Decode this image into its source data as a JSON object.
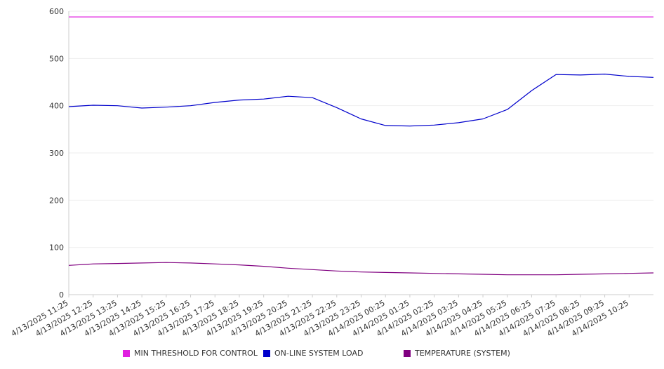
{
  "chart_data": {
    "type": "line",
    "title": "",
    "xlabel": "",
    "ylabel": "",
    "ylim": [
      0,
      600
    ],
    "yticks": [
      0,
      100,
      200,
      300,
      400,
      500,
      600
    ],
    "grid": true,
    "legend_position": "bottom",
    "x_tick_labels": [
      "4/13/2025 11:25",
      "4/13/2025 12:25",
      "4/13/2025 13:25",
      "4/13/2025 14:25",
      "4/13/2025 15:25",
      "4/13/2025 16:25",
      "4/13/2025 17:25",
      "4/13/2025 18:25",
      "4/13/2025 19:25",
      "4/13/2025 20:25",
      "4/13/2025 21:25",
      "4/13/2025 22:25",
      "4/13/2025 23:25",
      "4/14/2025 00:25",
      "4/14/2025 01:25",
      "4/14/2025 02:25",
      "4/14/2025 03:25",
      "4/14/2025 04:25",
      "4/14/2025 05:25",
      "4/14/2025 06:25",
      "4/14/2025 07:25",
      "4/14/2025 08:25",
      "4/14/2025 09:25",
      "4/14/2025 10:25"
    ],
    "x_range": [
      "4/13/2025 11:25",
      "4/14/2025 11:25"
    ],
    "series": [
      {
        "name": "MIN THRESHOLD FOR CONTROL",
        "color": "#e020e0",
        "x": [
          "4/13/2025 11:25",
          "4/14/2025 11:25"
        ],
        "values": [
          588,
          588
        ]
      },
      {
        "name": "ON-LINE SYSTEM LOAD",
        "color": "#0000cc",
        "x": [
          "4/13/2025 11:25",
          "4/13/2025 12:25",
          "4/13/2025 13:25",
          "4/13/2025 14:25",
          "4/13/2025 15:25",
          "4/13/2025 16:25",
          "4/13/2025 17:25",
          "4/13/2025 18:25",
          "4/13/2025 19:25",
          "4/13/2025 20:25",
          "4/13/2025 21:25",
          "4/13/2025 22:25",
          "4/13/2025 23:25",
          "4/14/2025 00:25",
          "4/14/2025 01:25",
          "4/14/2025 02:25",
          "4/14/2025 03:25",
          "4/14/2025 04:25",
          "4/14/2025 05:25",
          "4/14/2025 06:25",
          "4/14/2025 07:25",
          "4/14/2025 08:25",
          "4/14/2025 09:25",
          "4/14/2025 10:25",
          "4/14/2025 11:25"
        ],
        "values": [
          398,
          401,
          400,
          395,
          397,
          400,
          407,
          412,
          414,
          420,
          417,
          396,
          372,
          358,
          357,
          359,
          364,
          372,
          392,
          432,
          466,
          465,
          467,
          462,
          460
        ]
      },
      {
        "name": "TEMPERATURE (SYSTEM)",
        "color": "#800080",
        "x": [
          "4/13/2025 11:25",
          "4/13/2025 12:25",
          "4/13/2025 13:25",
          "4/13/2025 14:25",
          "4/13/2025 15:25",
          "4/13/2025 16:25",
          "4/13/2025 17:25",
          "4/13/2025 18:25",
          "4/13/2025 19:25",
          "4/13/2025 20:25",
          "4/13/2025 21:25",
          "4/13/2025 22:25",
          "4/13/2025 23:25",
          "4/14/2025 00:25",
          "4/14/2025 01:25",
          "4/14/2025 02:25",
          "4/14/2025 03:25",
          "4/14/2025 04:25",
          "4/14/2025 05:25",
          "4/14/2025 06:25",
          "4/14/2025 07:25",
          "4/14/2025 08:25",
          "4/14/2025 09:25",
          "4/14/2025 10:25",
          "4/14/2025 11:25"
        ],
        "values": [
          62,
          65,
          66,
          67,
          68,
          67,
          65,
          63,
          60,
          56,
          53,
          50,
          48,
          47,
          46,
          45,
          44,
          43,
          42,
          42,
          42,
          43,
          44,
          45,
          46
        ]
      }
    ]
  }
}
